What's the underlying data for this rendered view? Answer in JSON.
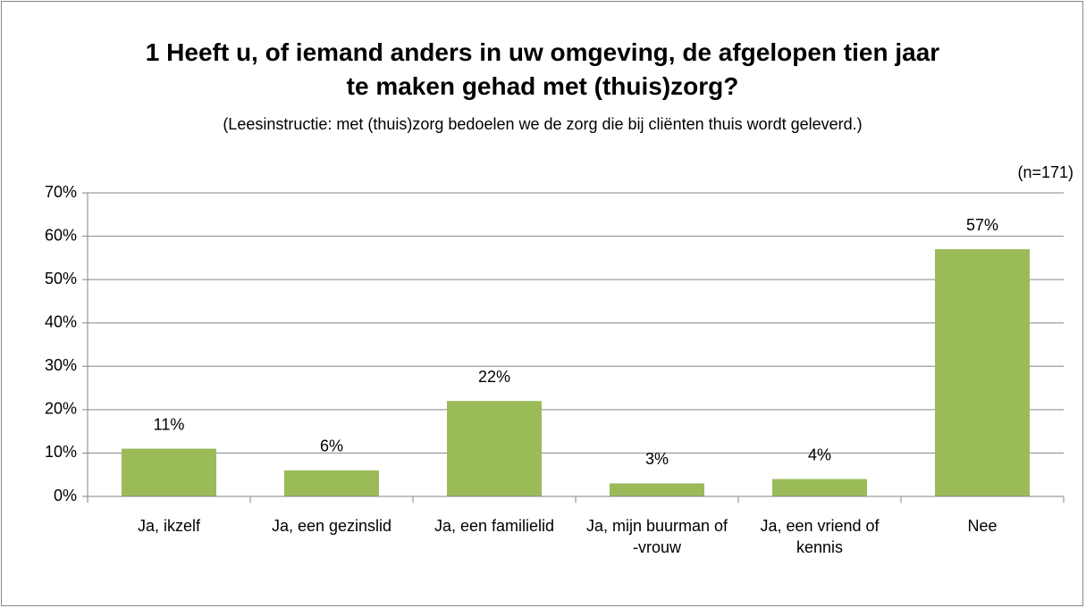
{
  "chart_data": {
    "type": "bar",
    "title": "1 Heeft u, of iemand anders in uw omgeving, de afgelopen tien jaar te maken gehad met (thuis)zorg?",
    "subtitle": "(Leesinstructie: met (thuis)zorg bedoelen we de zorg die bij cliënten thuis wordt geleverd.)",
    "annotation": "(n=171)",
    "categories": [
      "Ja, ikzelf",
      "Ja, een gezinslid",
      "Ja, een familielid",
      "Ja, mijn buurman of -vrouw",
      "Ja, een vriend of kennis",
      "Nee"
    ],
    "values": [
      11,
      6,
      22,
      3,
      4,
      57
    ],
    "value_labels": [
      "11%",
      "6%",
      "22%",
      "3%",
      "4%",
      "57%"
    ],
    "color": "#9bbb59",
    "ylim": [
      0,
      70
    ],
    "yticks": [
      {
        "value": 0,
        "label": "0%"
      },
      {
        "value": 10,
        "label": "10%"
      },
      {
        "value": 20,
        "label": "20%"
      },
      {
        "value": 30,
        "label": "30%"
      },
      {
        "value": 40,
        "label": "40%"
      },
      {
        "value": 50,
        "label": "50%"
      },
      {
        "value": 60,
        "label": "60%"
      },
      {
        "value": 70,
        "label": "70%"
      }
    ],
    "grid": true
  }
}
